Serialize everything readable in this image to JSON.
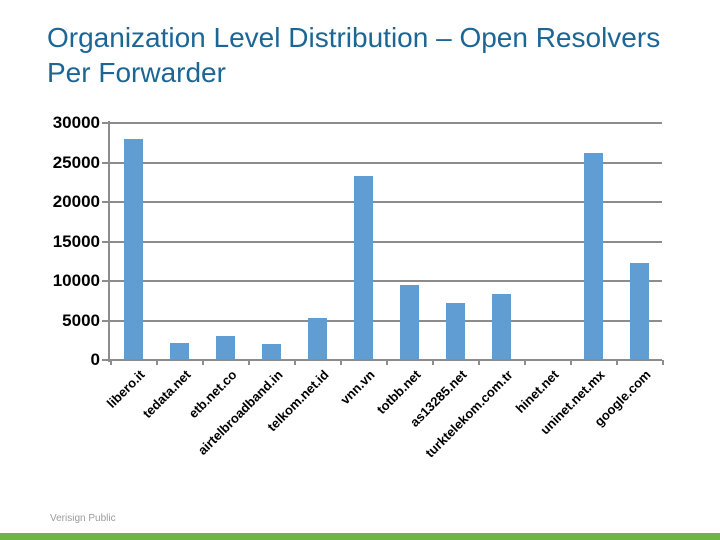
{
  "slide": {
    "title_line1": "Organization Level Distribution – Open Resolvers",
    "title_line2": "Per Forwarder",
    "footer": "Verisign Public"
  },
  "colors": {
    "title_text": "#1C6695",
    "bar_fill": "#5F9DD3",
    "grid_line": "#8C8C8C",
    "axis_text": "#000000",
    "footer_text": "#9B9B9B",
    "footer_bar": "#6FB444",
    "background": "#FFFFFF"
  },
  "chart_data": {
    "type": "bar",
    "title": "",
    "xlabel": "",
    "ylabel": "",
    "categories": [
      "libero.it",
      "tedata.net",
      "etb.net.co",
      "airtelbroadband.in",
      "telkom.net.id",
      "vnn.vn",
      "totbb.net",
      "as13285.net",
      "turktelekom.com.tr",
      "hinet.net",
      "uninet.net.mx",
      "google.com"
    ],
    "values": [
      28000,
      2200,
      3100,
      2000,
      5300,
      23300,
      9500,
      7200,
      8400,
      0,
      26200,
      12300
    ],
    "y_ticks": [
      0,
      5000,
      10000,
      15000,
      20000,
      25000,
      30000
    ],
    "ylim": [
      0,
      30000
    ],
    "grid": true,
    "legend": "none",
    "x_label_rotation_deg": 45
  }
}
